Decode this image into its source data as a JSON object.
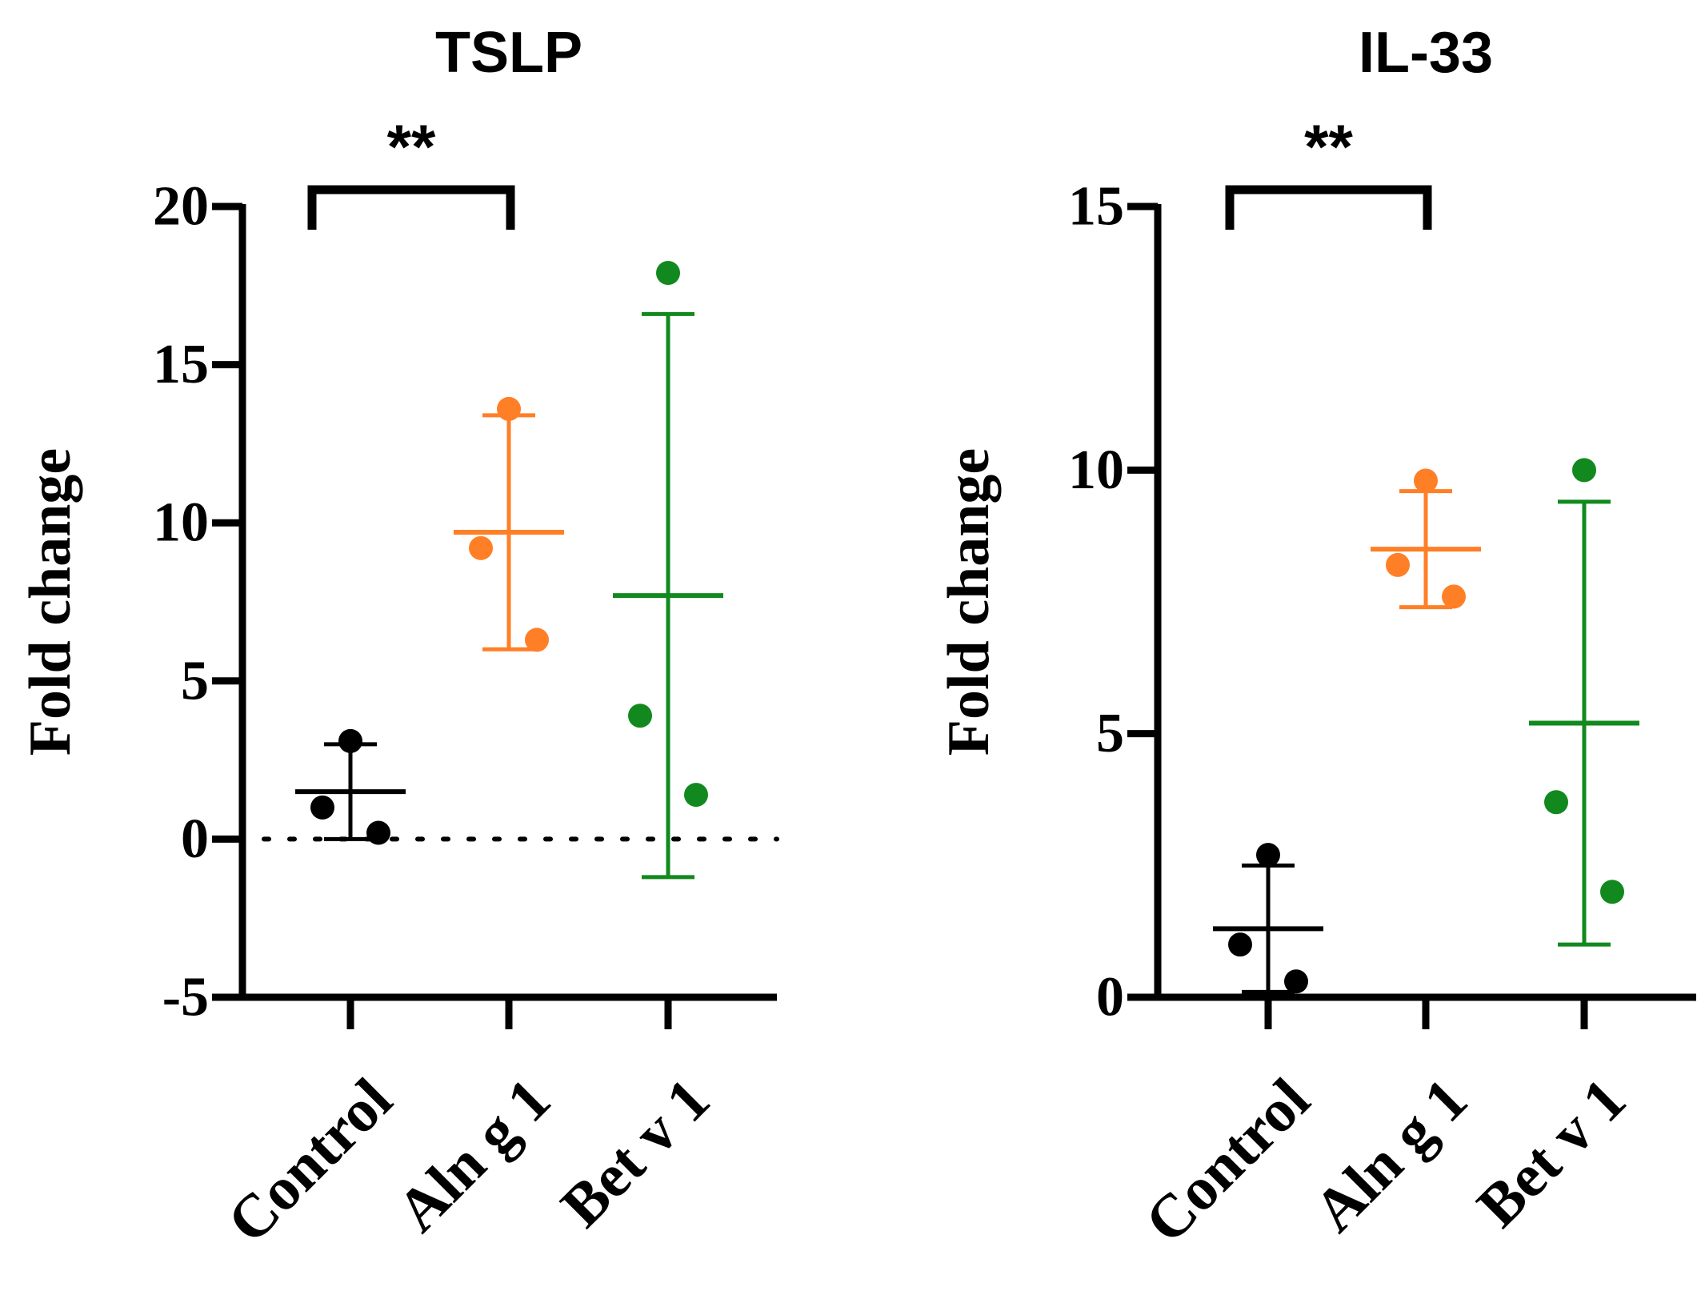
{
  "chart_data": [
    {
      "type": "scatter",
      "title": "TSLP",
      "ylabel": "Fold change",
      "xlabel": "",
      "ylim": [
        -5,
        20
      ],
      "yticks": [
        -5,
        0,
        5,
        10,
        15,
        20
      ],
      "ytick_labels": [
        "-5",
        "0",
        "5",
        "10",
        "15",
        "20"
      ],
      "categories": [
        "Control",
        "Aln g 1",
        "Bet v 1"
      ],
      "reference_line": 0,
      "groups": [
        {
          "name": "Control",
          "color": "#000000",
          "points": [
            3.1,
            1.0,
            0.2
          ],
          "mean": 1.5,
          "sd_upper": 3.0,
          "sd_lower": 0.0
        },
        {
          "name": "Aln g 1",
          "color": "#ff7f27",
          "points": [
            13.6,
            9.2,
            6.3
          ],
          "mean": 9.7,
          "sd_upper": 13.4,
          "sd_lower": 6.0
        },
        {
          "name": "Bet v 1",
          "color": "#12891e",
          "points": [
            17.9,
            3.9,
            1.4
          ],
          "mean": 7.7,
          "sd_upper": 16.6,
          "sd_lower": -1.2
        }
      ],
      "significance": [
        {
          "from": "Control",
          "to": "Aln g 1",
          "label": "**"
        }
      ]
    },
    {
      "type": "scatter",
      "title": "IL-33",
      "ylabel": "Fold change",
      "xlabel": "",
      "ylim": [
        0,
        15
      ],
      "yticks": [
        0,
        5,
        10,
        15
      ],
      "ytick_labels": [
        "0",
        "5",
        "10",
        "15"
      ],
      "categories": [
        "Control",
        "Aln g 1",
        "Bet v 1"
      ],
      "groups": [
        {
          "name": "Control",
          "color": "#000000",
          "points": [
            2.7,
            1.0,
            0.3
          ],
          "mean": 1.3,
          "sd_upper": 2.5,
          "sd_lower": 0.1
        },
        {
          "name": "Aln g 1",
          "color": "#ff7f27",
          "points": [
            9.8,
            8.2,
            7.6
          ],
          "mean": 8.5,
          "sd_upper": 9.6,
          "sd_lower": 7.4
        },
        {
          "name": "Bet v 1",
          "color": "#12891e",
          "points": [
            10.0,
            3.7,
            2.0
          ],
          "mean": 5.2,
          "sd_upper": 9.4,
          "sd_lower": 1.0
        }
      ],
      "significance": [
        {
          "from": "Control",
          "to": "Aln g 1",
          "label": "**"
        }
      ]
    }
  ]
}
